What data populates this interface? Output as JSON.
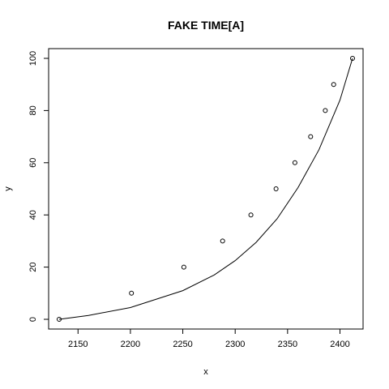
{
  "chart_data": {
    "type": "scatter",
    "title": "FAKE TIME[A]",
    "xlabel": "x",
    "ylabel": "y",
    "xlim": [
      2132,
      2412
    ],
    "ylim": [
      0,
      100
    ],
    "x_ticks": [
      2150,
      2200,
      2250,
      2300,
      2350,
      2400
    ],
    "y_ticks": [
      0,
      20,
      40,
      60,
      80,
      100
    ],
    "x_tick_labels": [
      "2150",
      "2200",
      "2250",
      "2300",
      "2350",
      "2400"
    ],
    "y_tick_labels": [
      "0",
      "20",
      "40",
      "60",
      "80",
      "100"
    ],
    "grid": false,
    "series": [
      {
        "name": "points",
        "style": "open-circle",
        "x": [
          2132,
          2201,
          2251,
          2288,
          2315,
          2339,
          2357,
          2372,
          2386,
          2394,
          2412
        ],
        "y": [
          0,
          10,
          20,
          30,
          40,
          50,
          60,
          70,
          80,
          90,
          100
        ]
      },
      {
        "name": "fitted-curve",
        "style": "line",
        "x": [
          2132,
          2160,
          2200,
          2250,
          2280,
          2300,
          2320,
          2340,
          2360,
          2380,
          2400,
          2412
        ],
        "y": [
          0,
          1.5,
          4.5,
          11,
          17,
          22.5,
          29.5,
          38.5,
          50.5,
          65,
          84,
          100
        ]
      }
    ]
  }
}
